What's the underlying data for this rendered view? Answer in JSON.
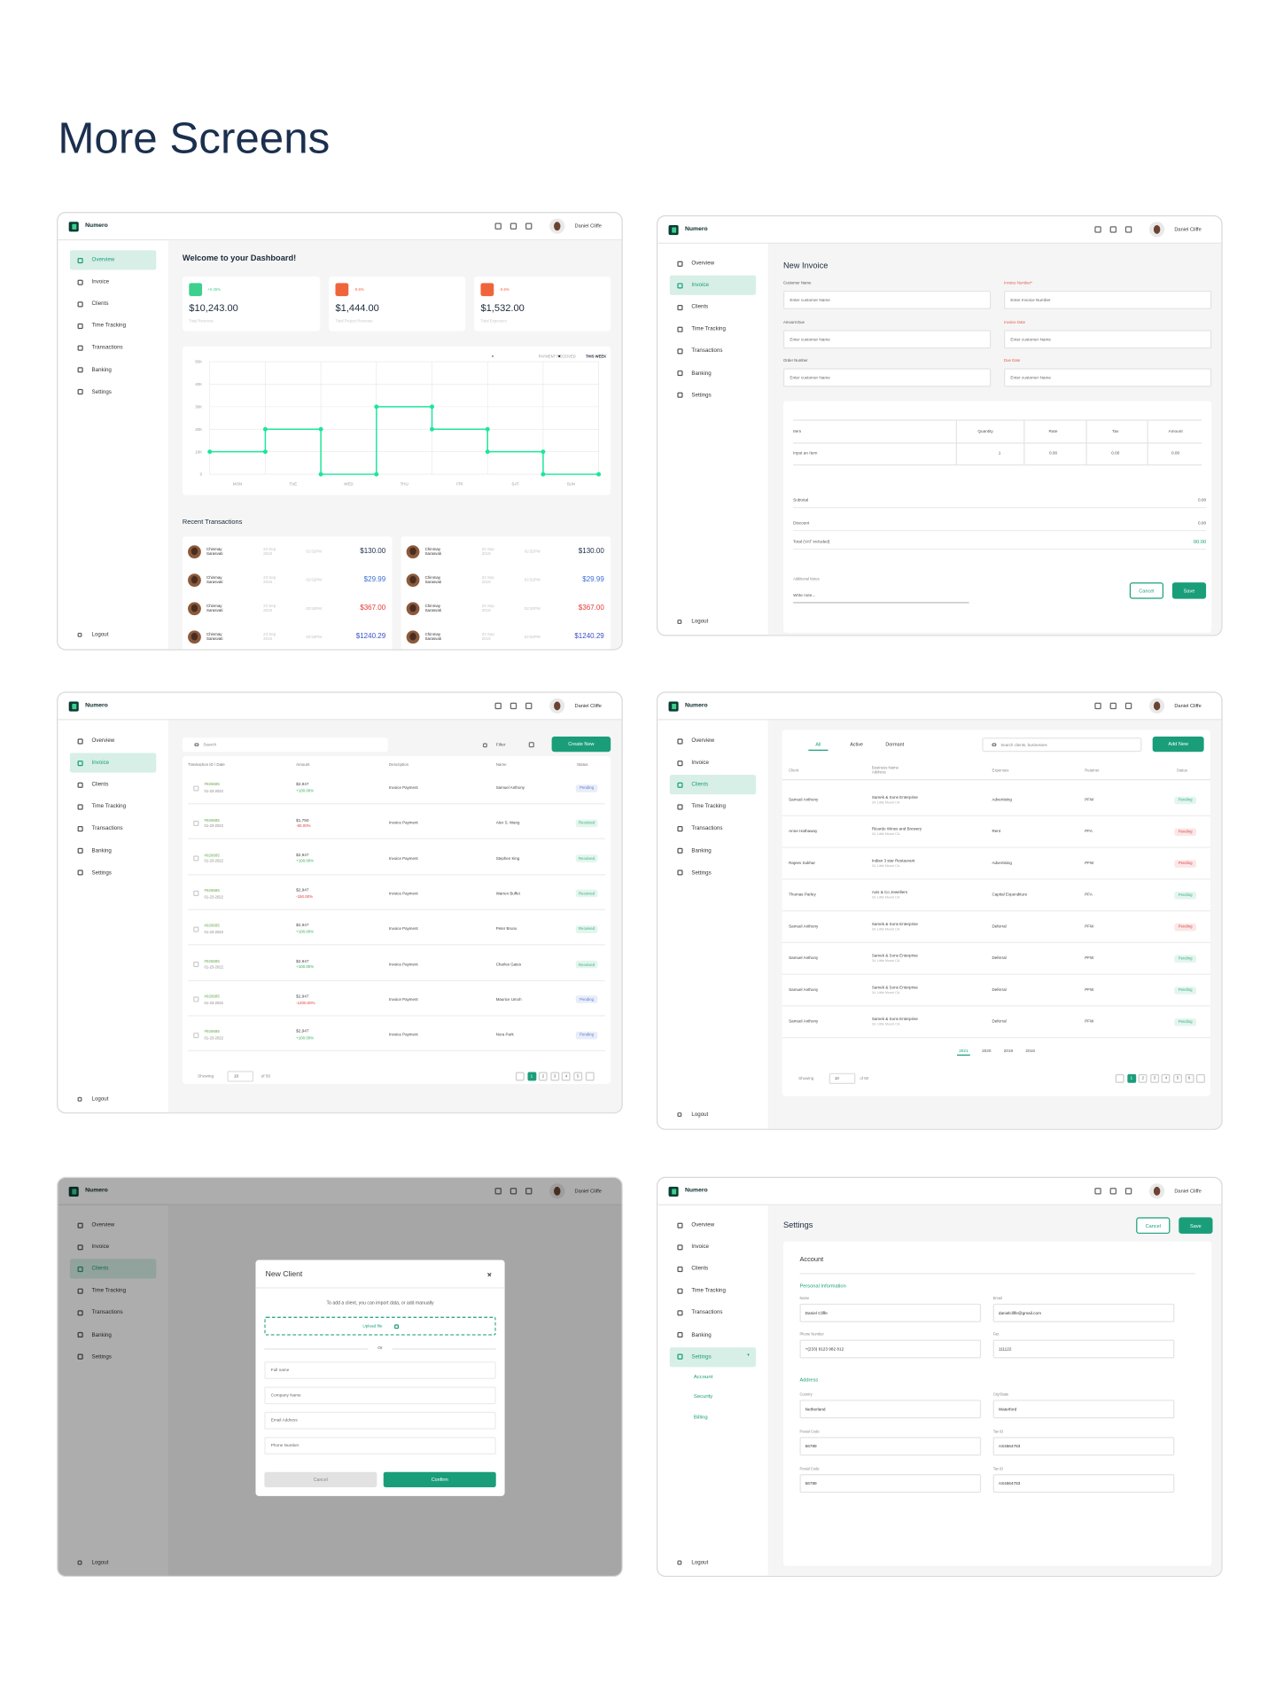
{
  "page_title": "More Screens",
  "brand": "Numero",
  "user_name": "Daniel Cliffe",
  "nav": [
    "Overview",
    "Invoice",
    "Clients",
    "Time Tracking",
    "Transactions",
    "Banking",
    "Settings"
  ],
  "logout": "Logout",
  "dashboard": {
    "welcome": "Welcome to your Dashboard!",
    "cards": [
      {
        "badge": "+0.45%",
        "value": "$10,243.00",
        "label": "Total Revenue",
        "color": "#3ecf8e"
      },
      {
        "badge": "-0.6%",
        "value": "$1,444.00",
        "label": "Total Project Revenue",
        "color": "#f0643c"
      },
      {
        "badge": "-0.6%",
        "value": "$1,532.00",
        "label": "Total Expenses",
        "color": "#f0643c"
      }
    ],
    "recent_title": "Recent Transactions",
    "transactions": [
      {
        "name": "Chinmay Sarasvati",
        "date": "23 Sep 2019",
        "time": "02:52PM",
        "amount": "$130.00",
        "color": "#1b2a4a"
      },
      {
        "name": "Chinmay Sarasvati",
        "date": "23 Sep 2019",
        "time": "02:52PM",
        "amount": "$29.99",
        "color": "#3b6fd8"
      },
      {
        "name": "Chinmay Sarasvati",
        "date": "23 Sep 2019",
        "time": "02:52PM",
        "amount": "$367.00",
        "color": "#e53935"
      },
      {
        "name": "Chinmay Sarasvati",
        "date": "23 Sep 2019",
        "time": "02:52PM",
        "amount": "$1240.29",
        "color": "#3b4fc8"
      }
    ]
  },
  "chart_data": {
    "type": "line",
    "legend_labels": [
      "PAYMENT RECEIVED",
      "THIS WEEK"
    ],
    "categories": [
      "MON",
      "TUE",
      "WED",
      "THU",
      "FRI",
      "SAT",
      "SUN"
    ],
    "x": [
      0,
      1,
      1,
      2,
      2,
      3,
      3,
      4,
      4,
      5,
      5,
      6,
      6,
      7
    ],
    "values": [
      10000,
      10000,
      20000,
      20000,
      0,
      0,
      30000,
      30000,
      20000,
      20000,
      10000,
      10000,
      0,
      0
    ],
    "color": "#1de59a",
    "xlim": [
      0,
      7
    ],
    "ylim": [
      0,
      50000
    ],
    "yticks": [
      0,
      {
        "value": 10000,
        "label": "10K"
      },
      {
        "value": 20000,
        "label": "20K"
      },
      {
        "value": 30000,
        "label": "30K"
      },
      {
        "value": 40000,
        "label": "40K"
      },
      {
        "value": 50000,
        "label": "50K"
      }
    ],
    "grid": true
  },
  "new_invoice": {
    "title": "New Invoice",
    "fields": [
      {
        "label": "Customer Name",
        "placeholder": "Enter customer Name",
        "color": "#555555"
      },
      {
        "label": "Invoice Number*",
        "placeholder": "Enter Invoice Number",
        "color": "#e05a4a"
      },
      {
        "label": "Amount Due",
        "placeholder": "Enter customer Name",
        "color": "#555555"
      },
      {
        "label": "Invoice Date",
        "placeholder": "Enter customer Name",
        "color": "#e05a4a"
      },
      {
        "label": "Order Number",
        "placeholder": "Enter customer Name",
        "color": "#555555"
      },
      {
        "label": "Due Date",
        "placeholder": "Enter customer Name",
        "color": "#e05a4a"
      }
    ],
    "columns": [
      "Item",
      "Quantity",
      "Rate",
      "Tax",
      "Amount"
    ],
    "row": [
      "Input an Item",
      "1",
      "0.00",
      "0.00",
      "0.00"
    ],
    "summary": [
      {
        "label": "Subtotal",
        "value": "0.00"
      },
      {
        "label": "Discount",
        "value": "0.00"
      },
      {
        "label": "Total (VAT included)",
        "value": "00.00"
      }
    ],
    "notes_label": "Additional Notes",
    "notes_placeholder": "Write note...",
    "cancel": "Cancel",
    "save": "Save"
  },
  "transactions": {
    "search": "Search",
    "filter": "Filter",
    "create": "Create New",
    "columns": [
      "Transaction ID / Date",
      "Amount",
      "Description",
      "Name",
      "Status"
    ],
    "rows": [
      {
        "id": "#926685",
        "date": "01-23-2022",
        "amount": "$2,947",
        "change": "+100.00%",
        "change_color": "#2eaf5b",
        "description": "Invoice Payment",
        "name": "Samuel Anthony",
        "status": "Pending",
        "status_color": "#5b7bd5"
      },
      {
        "id": "#926685",
        "date": "01-23-2022",
        "amount": "$1,750",
        "change": "-50.00%",
        "change_color": "#e53935",
        "description": "Invoice Payment",
        "name": "Alex S. Wang",
        "status": "Received",
        "status_color": "#36b37e"
      },
      {
        "id": "#926685",
        "date": "01-23-2022",
        "amount": "$2,947",
        "change": "+100.00%",
        "change_color": "#2eaf5b",
        "description": "Invoice Payment",
        "name": "Stephen King",
        "status": "Received",
        "status_color": "#36b37e"
      },
      {
        "id": "#926685",
        "date": "01-23-2022",
        "amount": "$2,947",
        "change": "-150.00%",
        "change_color": "#e53935",
        "description": "Invoice Payment",
        "name": "Warren Buffet",
        "status": "Received",
        "status_color": "#36b37e"
      },
      {
        "id": "#926685",
        "date": "01-23-2022",
        "amount": "$2,947",
        "change": "+100.00%",
        "change_color": "#2eaf5b",
        "description": "Invoice Payment",
        "name": "Peter Bruno",
        "status": "Received",
        "status_color": "#36b37e"
      },
      {
        "id": "#926685",
        "date": "01-23-2022",
        "amount": "$2,947",
        "change": "+100.00%",
        "change_color": "#2eaf5b",
        "description": "Invoice Payment",
        "name": "Charles Gates",
        "status": "Received",
        "status_color": "#36b37e"
      },
      {
        "id": "#926685",
        "date": "01-23-2022",
        "amount": "$2,947",
        "change": "-1200.00%",
        "change_color": "#e53935",
        "description": "Invoice Payment",
        "name": "Maurice Umoh",
        "status": "Pending",
        "status_color": "#5b7bd5"
      },
      {
        "id": "#926685",
        "date": "01-23-2022",
        "amount": "$2,947",
        "change": "+100.00%",
        "change_color": "#2eaf5b",
        "description": "Invoice Payment",
        "name": "Nora Park",
        "status": "Pending",
        "status_color": "#5b7bd5"
      }
    ],
    "showing": "Showing",
    "per_page": "10",
    "of_total": "of 50",
    "pages": [
      1,
      2,
      3,
      4,
      5
    ]
  },
  "clients": {
    "tabs": [
      "All",
      "Active",
      "Dormant"
    ],
    "search": "Search clients, businesses",
    "add": "Add New",
    "columns": [
      "Client",
      "Business Name Address",
      "Expenses",
      "Retainer",
      "Status"
    ],
    "rows": [
      {
        "client": "Samuel Anthony",
        "business": "Samek & Sons Enterprise",
        "address": "34, Little Mount CA",
        "expenses": "Advertising",
        "retainer": "PFW",
        "status": "Pending",
        "status_color": "#36b37e"
      },
      {
        "client": "Anne Hathaway",
        "business": "Ricardo Wines and Brewery",
        "address": "34, Little Mount CA",
        "expenses": "Rent",
        "retainer": "PFA",
        "status": "Pending",
        "status_color": "#e04848"
      },
      {
        "client": "Rajeev Sukhar",
        "business": "Indian 3 star Restaurant",
        "address": "34, Little Mount CA",
        "expenses": "Advertising",
        "retainer": "PFW",
        "status": "Pending",
        "status_color": "#e04848"
      },
      {
        "client": "Thomas Parley",
        "business": "Axis & Co Jewellers",
        "address": "34, Little Mount CA",
        "expenses": "Capital Expenditure",
        "retainer": "PFA",
        "status": "Pending",
        "status_color": "#36b37e"
      },
      {
        "client": "Samuel Anthony",
        "business": "Samek & Sons Enterprise",
        "address": "34, Little Mount CA",
        "expenses": "Deferral",
        "retainer": "PFW",
        "status": "Pending",
        "status_color": "#e04848"
      },
      {
        "client": "Samuel Anthony",
        "business": "Samek & Sons Enterprise",
        "address": "34, Little Mount CA",
        "expenses": "Deferral",
        "retainer": "PFW",
        "status": "Pending",
        "status_color": "#36b37e"
      },
      {
        "client": "Samuel Anthony",
        "business": "Samek & Sons Enterprise",
        "address": "34, Little Mount CA",
        "expenses": "Deferral",
        "retainer": "PFW",
        "status": "Pending",
        "status_color": "#36b37e"
      },
      {
        "client": "Samuel Anthony",
        "business": "Samek & Sons Enterprise",
        "address": "34, Little Mount CA",
        "expenses": "Deferral",
        "retainer": "PFW",
        "status": "Pending",
        "status_color": "#36b37e"
      }
    ],
    "years": [
      2021,
      2020,
      2019,
      2018
    ],
    "showing": "Showing",
    "per_page": "10",
    "of_total": "of 50",
    "pages": [
      1,
      2,
      3,
      4,
      5,
      6
    ]
  },
  "new_client": {
    "title": "New Client",
    "intro": "To add a client, you can import data, or  add manually",
    "upload": "Upload file",
    "or": "Or",
    "fields": [
      "Full name",
      "Company Name",
      "Email Address",
      "Phone Number"
    ],
    "cancel": "Cancel",
    "confirm": "Confirm"
  },
  "settings": {
    "title": "Settings",
    "cancel": "Cancel",
    "save": "Save",
    "submenu": [
      "Account",
      "Security",
      "Billing"
    ],
    "section": "Account",
    "personal_title": "Personal Information",
    "personal": [
      {
        "label": "Name",
        "value": "Daniel Cliffe"
      },
      {
        "label": "Email",
        "value": "danielcliffe@gmail.com"
      },
      {
        "label": "Phone Number",
        "value": "+(233) 9123 982 812"
      },
      {
        "label": "Fax",
        "value": "111122"
      }
    ],
    "address_title": "Address",
    "address": [
      {
        "label": "Country",
        "value": "Netherland"
      },
      {
        "label": "City/State",
        "value": "Waterford"
      },
      {
        "label": "Postal Code",
        "value": "56789"
      },
      {
        "label": "Tax ID",
        "value": "AS4564783"
      },
      {
        "label": "Postal Code",
        "value": "56789"
      },
      {
        "label": "Tax ID",
        "value": "AS4564783"
      }
    ]
  }
}
